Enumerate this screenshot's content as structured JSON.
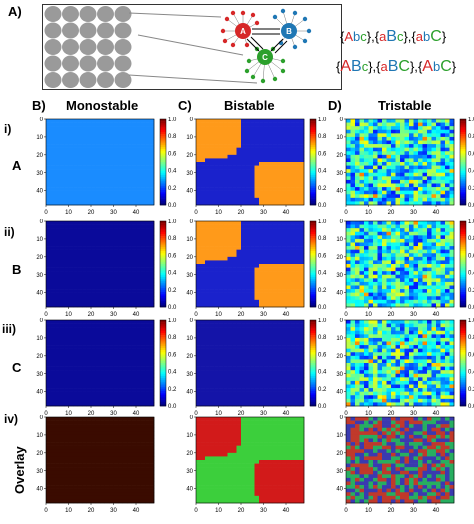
{
  "panel_a": {
    "label": "A)",
    "node_labels": [
      "A",
      "B",
      "C"
    ],
    "combos": {
      "line1": [
        {
          "open": "{",
          "A": "A",
          "b": "b",
          "c": "c",
          "close": "},"
        },
        {
          "open": "{",
          "A": "a",
          "b": "B",
          "c": "c",
          "close": "},"
        },
        {
          "open": "{",
          "A": "a",
          "b": "b",
          "c": "C",
          "close": "}"
        }
      ],
      "line2": [
        {
          "open": "{",
          "A": "A",
          "b": "B",
          "c": "c",
          "close": "},"
        },
        {
          "open": "{",
          "A": "a",
          "b": "B",
          "c": "C",
          "close": "},"
        },
        {
          "open": "{",
          "A": "A",
          "b": "b",
          "c": "C",
          "close": "}"
        }
      ]
    }
  },
  "columns": {
    "b_label": "B)",
    "b_title": "Monostable",
    "c_label": "C)",
    "c_title": "Bistable",
    "d_label": "D)",
    "d_title": "Tristable"
  },
  "rows": {
    "r1": {
      "roman": "i)",
      "letter": "A"
    },
    "r2": {
      "roman": "ii)",
      "letter": "B"
    },
    "r3": {
      "roman": "iii)",
      "letter": "C"
    },
    "r4": {
      "roman": "iv)",
      "overlay": "Overlay"
    }
  },
  "axis_ticks": {
    "x": [
      "0",
      "10",
      "20",
      "30",
      "40"
    ],
    "y": [
      "0",
      "10",
      "20",
      "30",
      "40"
    ]
  },
  "colorbar_ticks": [
    "1.0",
    "0.8",
    "0.6",
    "0.4",
    "0.2",
    "0.0"
  ],
  "colors": {
    "mono_A": "#1a8cff",
    "mono_B": "#0a0a9a",
    "mono_C": "#0a0a9a",
    "overlay_mono": "#3a0b00",
    "bi_high": "#ff9a1a",
    "bi_low": "#1a22cc",
    "bi_C": "#1414a8",
    "overlay_red": "#d21a1a",
    "overlay_green": "#3ccf3c"
  }
}
